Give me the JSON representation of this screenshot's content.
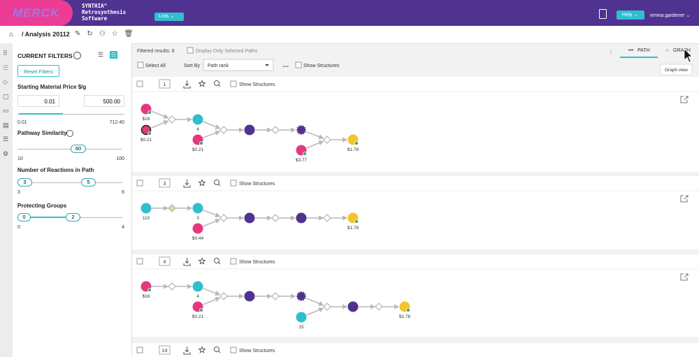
{
  "header": {
    "logo": "MERCK",
    "product_lines": [
      "SYNTHIA™",
      "Retrosynthesis",
      "Software"
    ],
    "lists_button": "Lists",
    "help_button": "Help",
    "user": "emma.gardener"
  },
  "toolbar": {
    "analysis": "Analysis 20112"
  },
  "filters": {
    "title": "CURRENT FILTERS",
    "reset": "Reset Filters",
    "price": {
      "label": "Starting Material Price $/g",
      "min_input": "0.01",
      "max_input": "500.00",
      "range_min": "0.01",
      "range_max": "712.40"
    },
    "similarity": {
      "label": "Pathway Similarity",
      "value": "60",
      "range_min": "10",
      "range_max": "100"
    },
    "reactions": {
      "label": "Number of Reactions in Path",
      "low": "3",
      "high": "5",
      "range_min": "3",
      "range_max": "6"
    },
    "protecting_groups": {
      "label": "Protecting Groups",
      "low": "0",
      "high": "2",
      "range_min": "0",
      "range_max": "4"
    }
  },
  "results": {
    "count": "Filtered results: 8",
    "display_selected": "Display Only Selected Paths",
    "path_tab": "PATH",
    "graph_tab": "GRAPH",
    "tooltip": "Graph view",
    "select_all": "Select All",
    "sort_by": "Sort By",
    "sort_value": "Path rank",
    "show_structures": "Show Structures"
  },
  "paths": [
    {
      "rank": "1",
      "show_structures": "Show Structures",
      "nodes": [
        "$16",
        "$0.21",
        "4",
        "$0.21",
        "$3.77",
        "$1.78"
      ]
    },
    {
      "rank": "3",
      "show_structures": "Show Structures",
      "nodes": [
        "110",
        "3",
        "$0.44",
        "$1.78"
      ]
    },
    {
      "rank": "4",
      "show_structures": "Show Structures",
      "nodes": [
        "$16",
        "4",
        "$0.21",
        "15",
        "$1.78"
      ]
    },
    {
      "rank": "14",
      "show_structures": "Show Structures"
    }
  ]
}
